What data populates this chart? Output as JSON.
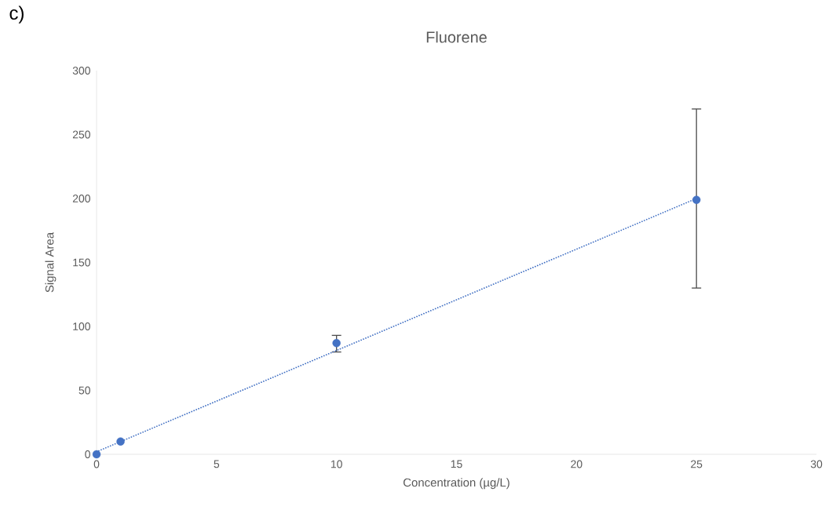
{
  "chart_data": {
    "type": "scatter",
    "title": "Fluorene",
    "xlabel": "Concentration (µg/L)",
    "ylabel": "Signal Area",
    "annotations": [
      "c)"
    ],
    "series": [
      {
        "type": "scatter",
        "color": "#4472c4",
        "marker": "circle",
        "x": [
          0,
          1,
          10,
          25
        ],
        "values": [
          0,
          10,
          87,
          199
        ],
        "errors": [
          null,
          null,
          [
            80,
            93
          ],
          [
            130,
            270
          ]
        ]
      },
      {
        "type": "line",
        "color": "#4472c4",
        "marker": "none",
        "line_style": "dotted",
        "x": [
          0,
          25
        ],
        "values": [
          2,
          200
        ]
      }
    ],
    "xlim": [
      0,
      30
    ],
    "ylim": [
      0,
      300
    ],
    "xticks": [
      0,
      5,
      10,
      15,
      20,
      25,
      30
    ],
    "yticks": [
      0,
      50,
      100,
      150,
      200,
      250,
      300
    ]
  }
}
